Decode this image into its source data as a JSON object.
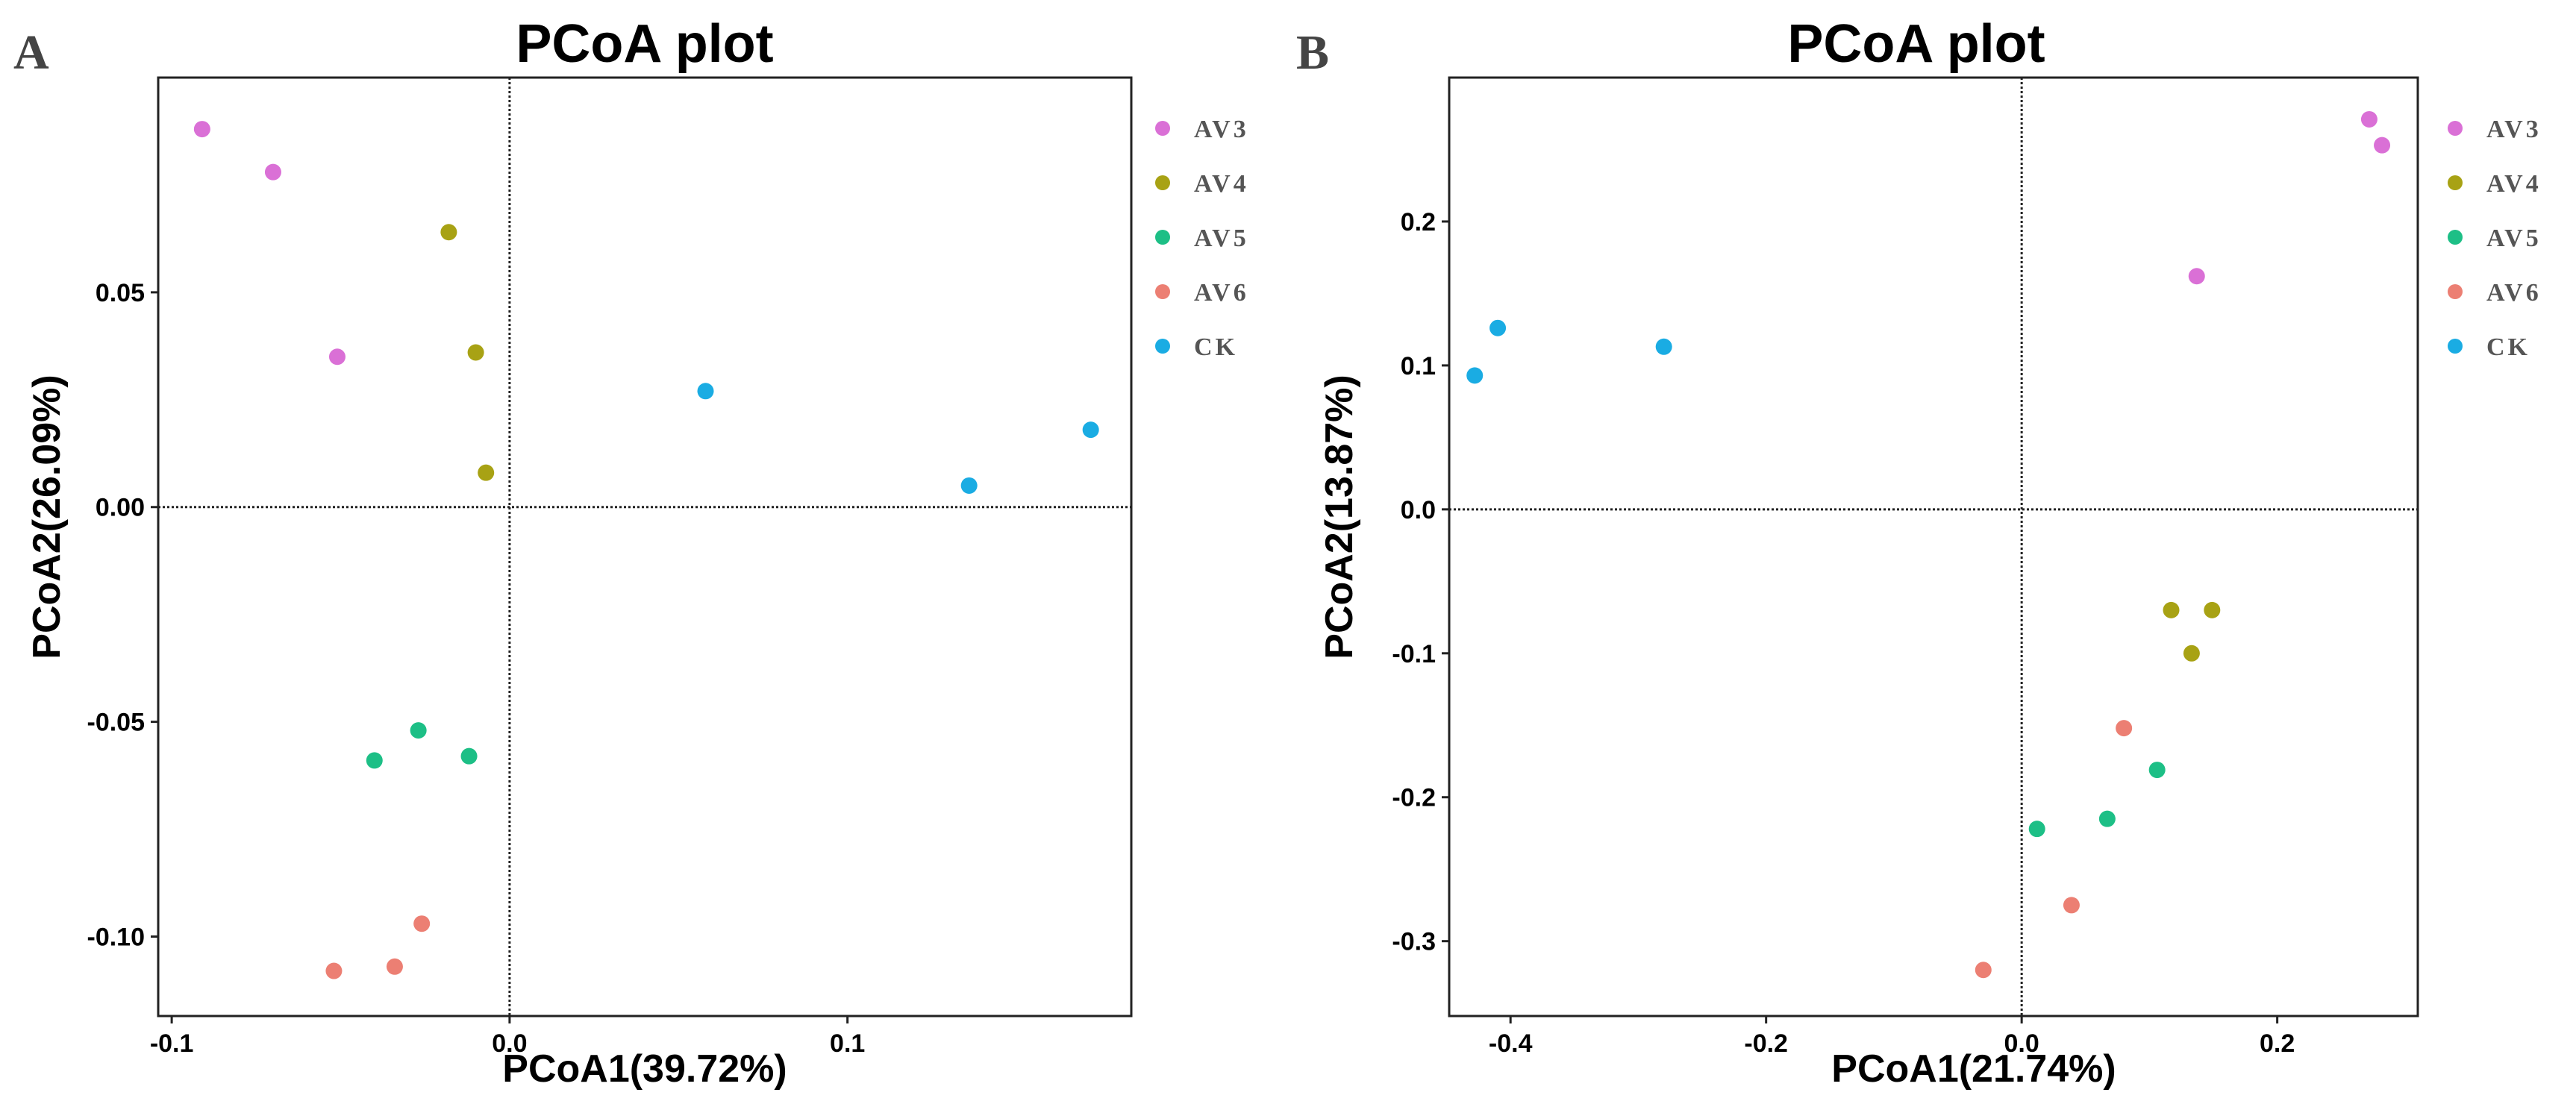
{
  "chart_data": [
    {
      "type": "scatter",
      "panel_letter": "A",
      "title": "PCoA plot",
      "xlabel": "PCoA1(39.72%)",
      "ylabel": "PCoA2(26.09%)",
      "xlim": [
        -0.104,
        0.184
      ],
      "ylim": [
        -0.1185,
        0.1
      ],
      "xticks": [
        -0.1,
        0.0,
        0.1
      ],
      "xtick_labels": [
        "-0.1",
        "0.0",
        "0.1"
      ],
      "yticks": [
        -0.1,
        -0.05,
        0.0,
        0.05
      ],
      "ytick_labels": [
        "-0.10",
        "-0.05",
        "0.00",
        "0.05"
      ],
      "reference_lines": {
        "x": 0,
        "y": 0
      },
      "grid": false,
      "legend_position": "right",
      "series": [
        {
          "name": "AV3",
          "color": "#DA70D6",
          "points": [
            [
              -0.091,
              0.088
            ],
            [
              -0.07,
              0.078
            ],
            [
              -0.051,
              0.035
            ]
          ]
        },
        {
          "name": "AV4",
          "color": "#A8A214",
          "points": [
            [
              -0.018,
              0.064
            ],
            [
              -0.01,
              0.036
            ],
            [
              -0.007,
              0.008
            ]
          ]
        },
        {
          "name": "AV5",
          "color": "#1DBF86",
          "points": [
            [
              -0.04,
              -0.059
            ],
            [
              -0.027,
              -0.052
            ],
            [
              -0.012,
              -0.058
            ]
          ]
        },
        {
          "name": "AV6",
          "color": "#EC7F73",
          "points": [
            [
              -0.052,
              -0.108
            ],
            [
              -0.034,
              -0.107
            ],
            [
              -0.026,
              -0.097
            ]
          ]
        },
        {
          "name": "CK",
          "color": "#1AACE3",
          "points": [
            [
              0.058,
              0.027
            ],
            [
              0.136,
              0.005
            ],
            [
              0.172,
              0.018
            ]
          ]
        }
      ]
    },
    {
      "type": "scatter",
      "panel_letter": "B",
      "title": "PCoA plot",
      "xlabel": "PCoA1(21.74%)",
      "ylabel": "PCoA2(13.87%)",
      "xlim": [
        -0.448,
        0.31
      ],
      "ylim": [
        -0.352,
        0.3
      ],
      "xticks": [
        -0.4,
        -0.2,
        0.0,
        0.2
      ],
      "xtick_labels": [
        "-0.4",
        "-0.2",
        "0.0",
        "0.2"
      ],
      "yticks": [
        -0.3,
        -0.2,
        -0.1,
        0.0,
        0.1,
        0.2
      ],
      "ytick_labels": [
        "-0.3",
        "-0.2",
        "-0.1",
        "0.0",
        "0.1",
        "0.2"
      ],
      "reference_lines": {
        "x": 0,
        "y": 0
      },
      "grid": false,
      "legend_position": "right",
      "series": [
        {
          "name": "AV3",
          "color": "#DA70D6",
          "points": [
            [
              0.272,
              0.271
            ],
            [
              0.282,
              0.253
            ],
            [
              0.137,
              0.162
            ]
          ]
        },
        {
          "name": "AV4",
          "color": "#A8A214",
          "points": [
            [
              0.117,
              -0.07
            ],
            [
              0.149,
              -0.07
            ],
            [
              0.133,
              -0.1
            ]
          ]
        },
        {
          "name": "AV5",
          "color": "#1DBF86",
          "points": [
            [
              0.012,
              -0.222
            ],
            [
              0.067,
              -0.215
            ],
            [
              0.106,
              -0.181
            ]
          ]
        },
        {
          "name": "AV6",
          "color": "#EC7F73",
          "points": [
            [
              -0.03,
              -0.32
            ],
            [
              0.039,
              -0.275
            ],
            [
              0.08,
              -0.152
            ]
          ]
        },
        {
          "name": "CK",
          "color": "#1AACE3",
          "points": [
            [
              -0.428,
              0.093
            ],
            [
              -0.41,
              0.126
            ],
            [
              -0.28,
              0.113
            ]
          ]
        }
      ]
    }
  ]
}
